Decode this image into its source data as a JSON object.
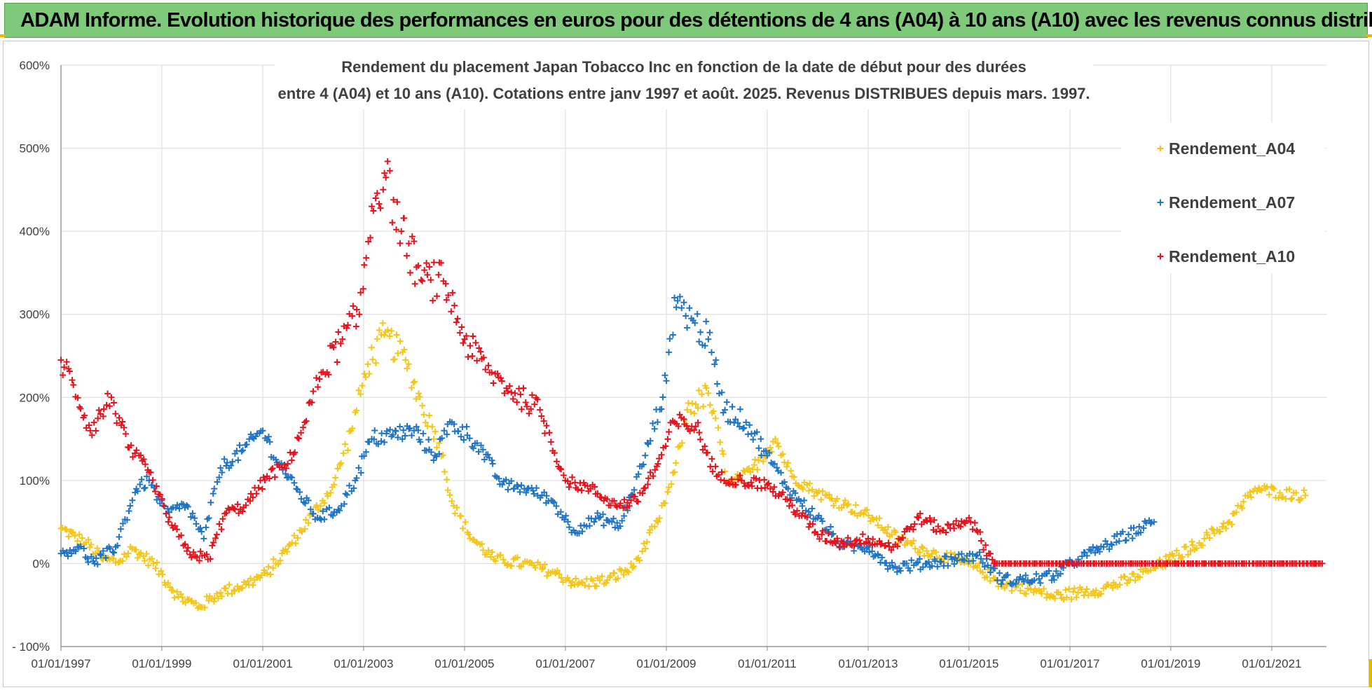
{
  "header": {
    "banner_text": "ADAM Informe. Evolution historique des performances en euros pour des détentions de 4 ans (A04) à 10 ans (A10) avec les revenus connus distribués"
  },
  "chart_data": {
    "type": "scatter",
    "title_line1": "Rendement du placement Japan Tobacco Inc en fonction de la date de début pour des durées",
    "title_line2": "entre 4 (A04) et 10 ans (A10). Cotations entre janv 1997 et août. 2025. Revenus DISTRIBUES depuis mars. 1997.",
    "xlabel": "",
    "ylabel": "",
    "x_range": [
      "1997-01-01",
      "2022-02-01"
    ],
    "ylim": [
      -100,
      600
    ],
    "y_ticks": [
      "- 100%",
      "0%",
      "100%",
      "200%",
      "300%",
      "400%",
      "500%",
      "600%"
    ],
    "x_ticks": [
      "01/01/1997",
      "01/01/1999",
      "01/01/2001",
      "01/01/2003",
      "01/01/2005",
      "01/01/2007",
      "01/01/2009",
      "01/01/2011",
      "01/01/2013",
      "01/01/2015",
      "01/01/2017",
      "01/01/2019",
      "01/01/2021"
    ],
    "grid": true,
    "legend_position": "right",
    "marker": "+",
    "series": [
      {
        "name": "Rendement_A04",
        "color": "#f5c518",
        "points": [
          [
            "1997-01-01",
            42
          ],
          [
            "1997-07-01",
            25
          ],
          [
            "1997-11-01",
            5
          ],
          [
            "1998-03-01",
            2
          ],
          [
            "1998-06-01",
            18
          ],
          [
            "1998-11-01",
            0
          ],
          [
            "1999-05-01",
            -40
          ],
          [
            "1999-10-01",
            -52
          ],
          [
            "2000-03-01",
            -35
          ],
          [
            "2000-09-01",
            -25
          ],
          [
            "2001-02-01",
            -12
          ],
          [
            "2001-08-01",
            25
          ],
          [
            "2002-01-01",
            60
          ],
          [
            "2002-06-01",
            95
          ],
          [
            "2002-10-01",
            160
          ],
          [
            "2003-02-01",
            240
          ],
          [
            "2003-06-01",
            275
          ],
          [
            "2003-11-01",
            245
          ],
          [
            "2004-03-01",
            190
          ],
          [
            "2004-07-01",
            145
          ],
          [
            "2004-10-01",
            75
          ],
          [
            "2005-02-01",
            35
          ],
          [
            "2005-08-01",
            5
          ],
          [
            "2006-03-01",
            0
          ],
          [
            "2006-10-01",
            -10
          ],
          [
            "2007-04-01",
            -25
          ],
          [
            "2007-11-01",
            -20
          ],
          [
            "2008-05-01",
            -5
          ],
          [
            "2008-11-01",
            50
          ],
          [
            "2009-03-01",
            110
          ],
          [
            "2009-06-01",
            185
          ],
          [
            "2009-11-01",
            205
          ],
          [
            "2010-04-01",
            95
          ],
          [
            "2010-09-01",
            110
          ],
          [
            "2011-03-01",
            150
          ],
          [
            "2011-07-01",
            105
          ],
          [
            "2012-01-01",
            85
          ],
          [
            "2012-08-01",
            70
          ],
          [
            "2013-02-01",
            55
          ],
          [
            "2013-08-01",
            30
          ],
          [
            "2014-03-01",
            15
          ],
          [
            "2014-09-01",
            5
          ],
          [
            "2015-03-01",
            -5
          ],
          [
            "2015-09-01",
            -25
          ],
          [
            "2016-03-01",
            -30
          ],
          [
            "2016-09-01",
            -40
          ],
          [
            "2017-03-01",
            -35
          ],
          [
            "2017-09-01",
            -30
          ],
          [
            "2018-03-01",
            -20
          ],
          [
            "2018-09-01",
            -5
          ],
          [
            "2019-03-01",
            10
          ],
          [
            "2019-09-01",
            30
          ],
          [
            "2020-03-01",
            50
          ],
          [
            "2020-09-01",
            90
          ],
          [
            "2021-03-01",
            85
          ],
          [
            "2021-09-01",
            82
          ]
        ]
      },
      {
        "name": "Rendement_A07",
        "color": "#1f74c4",
        "points": [
          [
            "1997-01-01",
            12
          ],
          [
            "1997-05-01",
            20
          ],
          [
            "1997-09-01",
            0
          ],
          [
            "1998-02-01",
            20
          ],
          [
            "1998-07-01",
            90
          ],
          [
            "1998-10-01",
            100
          ],
          [
            "1999-02-01",
            60
          ],
          [
            "1999-07-01",
            70
          ],
          [
            "1999-11-01",
            30
          ],
          [
            "2000-03-01",
            115
          ],
          [
            "2000-08-01",
            135
          ],
          [
            "2001-01-01",
            160
          ],
          [
            "2001-05-01",
            120
          ],
          [
            "2001-09-01",
            90
          ],
          [
            "2002-02-01",
            55
          ],
          [
            "2002-07-01",
            65
          ],
          [
            "2002-11-01",
            100
          ],
          [
            "2003-03-01",
            150
          ],
          [
            "2003-08-01",
            155
          ],
          [
            "2004-01-01",
            160
          ],
          [
            "2004-06-01",
            130
          ],
          [
            "2004-10-01",
            170
          ],
          [
            "2005-04-01",
            145
          ],
          [
            "2005-10-01",
            95
          ],
          [
            "2006-04-01",
            90
          ],
          [
            "2006-10-01",
            75
          ],
          [
            "2007-03-01",
            40
          ],
          [
            "2007-09-01",
            55
          ],
          [
            "2008-02-01",
            45
          ],
          [
            "2008-08-01",
            130
          ],
          [
            "2009-01-01",
            220
          ],
          [
            "2009-03-01",
            320
          ],
          [
            "2009-07-01",
            295
          ],
          [
            "2009-11-01",
            270
          ],
          [
            "2010-03-01",
            185
          ],
          [
            "2010-08-01",
            170
          ],
          [
            "2011-01-01",
            130
          ],
          [
            "2011-06-01",
            90
          ],
          [
            "2012-01-01",
            55
          ],
          [
            "2012-07-01",
            20
          ],
          [
            "2013-01-01",
            20
          ],
          [
            "2013-07-01",
            -5
          ],
          [
            "2014-03-01",
            0
          ],
          [
            "2014-09-01",
            5
          ],
          [
            "2015-03-01",
            10
          ],
          [
            "2015-09-01",
            -20
          ],
          [
            "2016-03-01",
            -20
          ],
          [
            "2016-09-01",
            -15
          ],
          [
            "2017-03-01",
            5
          ],
          [
            "2017-09-01",
            20
          ],
          [
            "2018-03-01",
            35
          ],
          [
            "2018-09-01",
            50
          ]
        ]
      },
      {
        "name": "Rendement_A10",
        "color": "#e8101a",
        "points": [
          [
            "1997-01-01",
            245
          ],
          [
            "1997-04-01",
            215
          ],
          [
            "1997-08-01",
            160
          ],
          [
            "1998-01-01",
            200
          ],
          [
            "1998-05-01",
            140
          ],
          [
            "1998-10-01",
            110
          ],
          [
            "1999-02-01",
            60
          ],
          [
            "1999-07-01",
            15
          ],
          [
            "1999-12-01",
            5
          ],
          [
            "2000-04-01",
            60
          ],
          [
            "2000-09-01",
            70
          ],
          [
            "2001-02-01",
            105
          ],
          [
            "2001-07-01",
            120
          ],
          [
            "2001-11-01",
            170
          ],
          [
            "2002-03-01",
            230
          ],
          [
            "2002-08-01",
            270
          ],
          [
            "2002-12-01",
            300
          ],
          [
            "2003-03-01",
            430
          ],
          [
            "2003-06-01",
            470
          ],
          [
            "2003-10-01",
            400
          ],
          [
            "2004-03-01",
            340
          ],
          [
            "2004-08-01",
            340
          ],
          [
            "2005-01-01",
            270
          ],
          [
            "2005-07-01",
            230
          ],
          [
            "2006-01-01",
            205
          ],
          [
            "2006-07-01",
            185
          ],
          [
            "2007-01-01",
            100
          ],
          [
            "2007-07-01",
            90
          ],
          [
            "2008-01-01",
            70
          ],
          [
            "2008-06-01",
            75
          ],
          [
            "2008-11-01",
            120
          ],
          [
            "2009-03-01",
            170
          ],
          [
            "2009-08-01",
            165
          ],
          [
            "2010-01-01",
            105
          ],
          [
            "2010-07-01",
            100
          ],
          [
            "2011-01-01",
            95
          ],
          [
            "2011-07-01",
            70
          ],
          [
            "2012-01-01",
            35
          ],
          [
            "2012-07-01",
            25
          ],
          [
            "2013-01-01",
            30
          ],
          [
            "2013-07-01",
            20
          ],
          [
            "2014-01-01",
            55
          ],
          [
            "2014-07-01",
            40
          ],
          [
            "2015-01-01",
            55
          ],
          [
            "2015-07-01",
            0
          ],
          [
            "2016-07-01",
            0
          ],
          [
            "2018-01-01",
            0
          ],
          [
            "2019-07-01",
            0
          ],
          [
            "2021-01-01",
            0
          ],
          [
            "2022-01-01",
            0
          ]
        ]
      }
    ]
  }
}
